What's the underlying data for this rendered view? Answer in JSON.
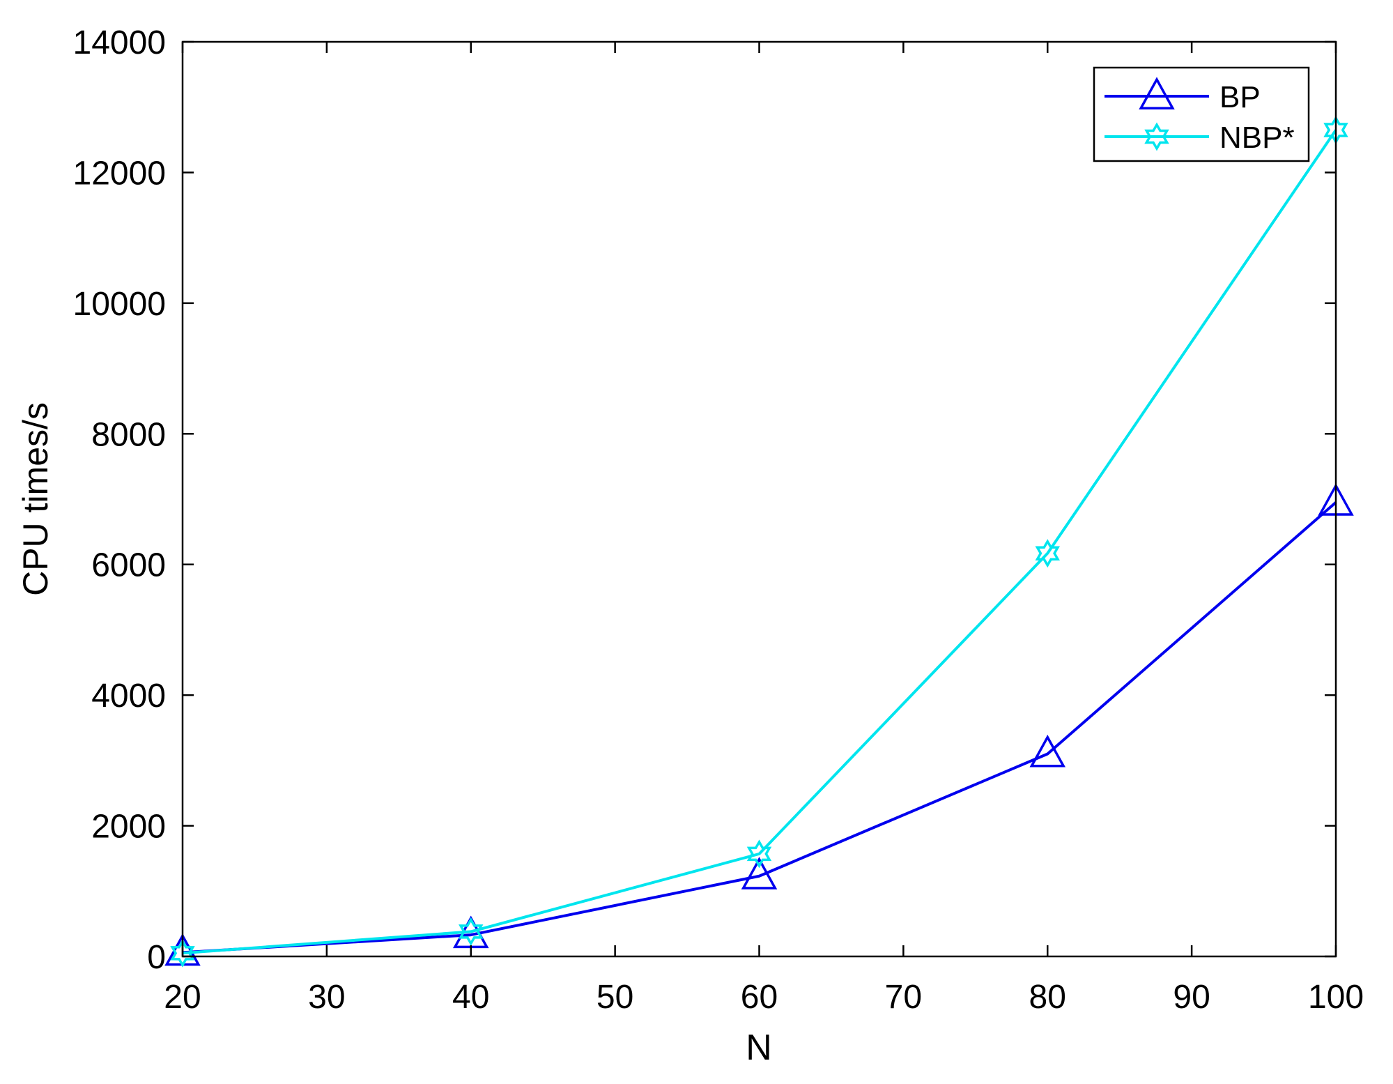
{
  "chart_data": {
    "type": "line",
    "title": "",
    "xlabel": "N",
    "ylabel": "CPU times/s",
    "xlim": [
      20,
      100
    ],
    "ylim": [
      0,
      14000
    ],
    "xticks": [
      20,
      30,
      40,
      50,
      60,
      70,
      80,
      90,
      100
    ],
    "yticks": [
      0,
      2000,
      4000,
      6000,
      8000,
      10000,
      12000,
      14000
    ],
    "x": [
      20,
      40,
      60,
      80,
      100
    ],
    "series": [
      {
        "name": "BP",
        "values": [
          60,
          330,
          1230,
          3100,
          6950
        ],
        "color": "#0000ee",
        "marker": "triangle"
      },
      {
        "name": "NBP*",
        "values": [
          50,
          380,
          1570,
          6170,
          12650
        ],
        "color": "#00e5ee",
        "marker": "hexagram"
      }
    ],
    "grid": false,
    "legend": "top-right"
  }
}
